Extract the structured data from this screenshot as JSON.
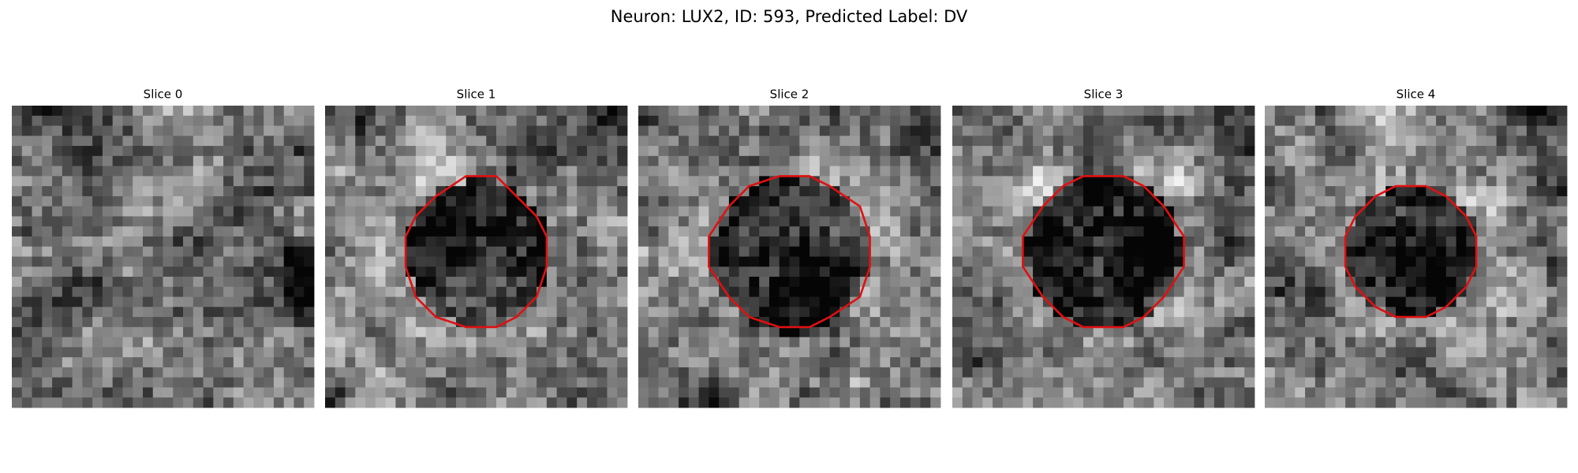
{
  "title": "Neuron: LUX2, ID: 593, Predicted Label: DV",
  "panels": [
    {
      "title": "Slice 0"
    },
    {
      "title": "Slice 1"
    },
    {
      "title": "Slice 2"
    },
    {
      "title": "Slice 3"
    },
    {
      "title": "Slice 4"
    }
  ]
}
